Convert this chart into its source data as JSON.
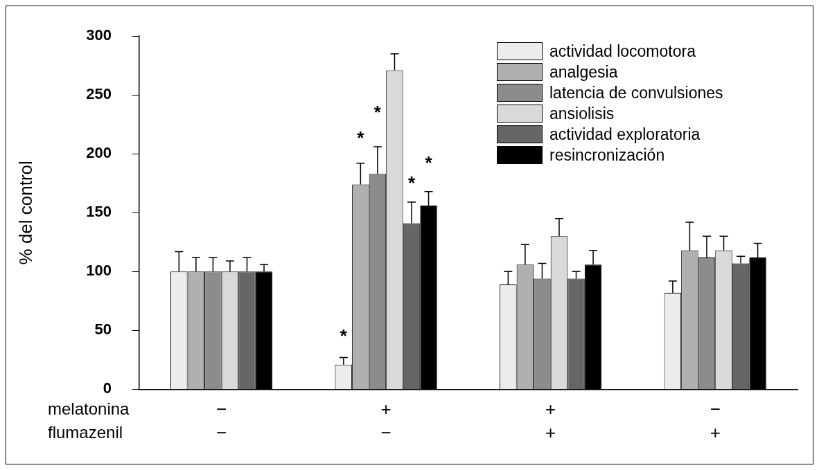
{
  "chart_data": {
    "type": "bar",
    "ylabel": "% del control",
    "categories": [
      "−\n−",
      "+\n−",
      "+\n+",
      "−\n+"
    ],
    "series": [
      {
        "name": "actividad locomotora",
        "color": "#ececec",
        "values": [
          100,
          21,
          89,
          82
        ],
        "errors": [
          [
            100,
            117
          ],
          [
            21,
            27
          ],
          [
            89,
            100
          ],
          [
            82,
            92
          ]
        ]
      },
      {
        "name": "analgesia",
        "color": "#b0b0b0",
        "values": [
          100,
          174,
          106,
          118
        ],
        "errors": [
          [
            100,
            112
          ],
          [
            174,
            192
          ],
          [
            106,
            123
          ],
          [
            118,
            142
          ]
        ]
      },
      {
        "name": "latencia de convulsiones",
        "color": "#8c8c8c",
        "values": [
          100,
          183,
          94,
          112
        ],
        "errors": [
          [
            100,
            112
          ],
          [
            183,
            206
          ],
          [
            94,
            107
          ],
          [
            112,
            130
          ]
        ]
      },
      {
        "name": "ansiolisis",
        "color": "#d9d9d9",
        "values": [
          100,
          271,
          130,
          118
        ],
        "errors": [
          [
            100,
            109
          ],
          [
            271,
            285
          ],
          [
            130,
            145
          ],
          [
            118,
            130
          ]
        ]
      },
      {
        "name": "actividad exploratoria",
        "color": "#666666",
        "values": [
          100,
          141,
          94,
          107
        ],
        "errors": [
          [
            100,
            112
          ],
          [
            141,
            159
          ],
          [
            94,
            100
          ],
          [
            107,
            113
          ]
        ]
      },
      {
        "name": "resincronización",
        "color": "#000000",
        "values": [
          100,
          156,
          106,
          112
        ],
        "errors": [
          [
            100,
            106
          ],
          [
            156,
            168
          ],
          [
            106,
            118
          ],
          [
            112,
            124
          ]
        ]
      }
    ],
    "ylim": [
      0,
      300
    ],
    "yticks": [
      0,
      50,
      100,
      150,
      200,
      250,
      300
    ],
    "grid": false,
    "legend": "top right",
    "annotations": [
      "melatonina",
      "flumazenil",
      {
        "text": "*",
        "x": "+\n−",
        "y": 48
      },
      {
        "text": "*",
        "x": "+\n−",
        "y": 216
      },
      {
        "text": "*",
        "x": "+\n−",
        "y": 238
      },
      {
        "text": "*",
        "x": "+\n−",
        "y": 178
      },
      {
        "text": "*",
        "x": "+\n−",
        "y": 195
      }
    ]
  }
}
